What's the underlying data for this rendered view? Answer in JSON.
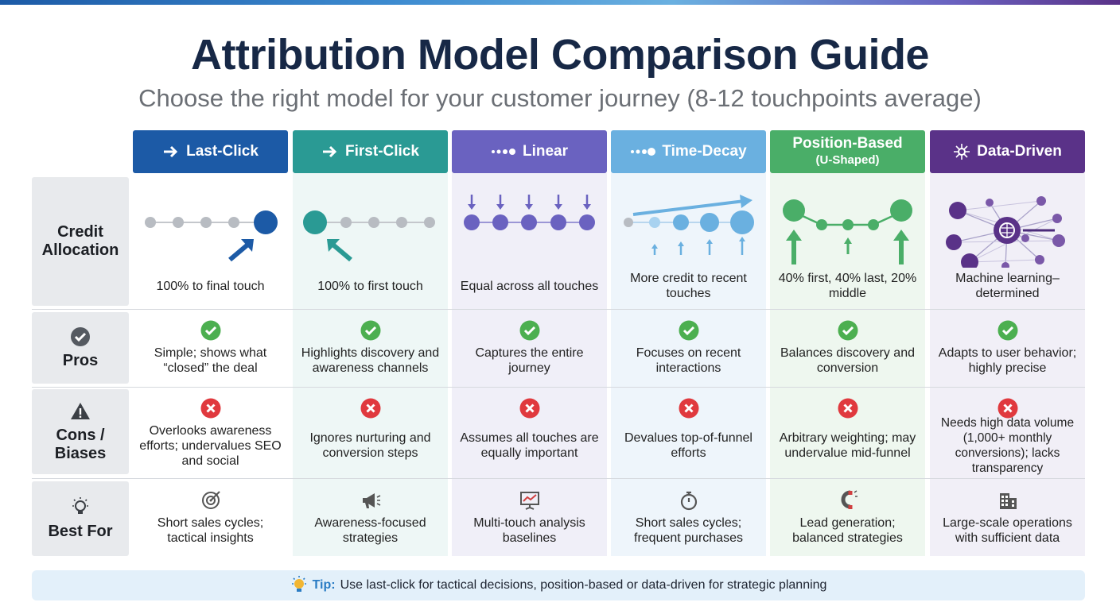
{
  "header": {
    "title": "Attribution Model Comparison Guide",
    "subtitle": "Choose the right model for your customer journey (8-12 touchpoints average)"
  },
  "columns": [
    {
      "name": "Last-Click"
    },
    {
      "name": "First-Click"
    },
    {
      "name": "Linear"
    },
    {
      "name": "Time-Decay"
    },
    {
      "name": "Position-Based",
      "subtitle": "(U-Shaped)"
    },
    {
      "name": "Data-Driven"
    }
  ],
  "rows": [
    {
      "label": "Credit Allocation",
      "cells": [
        "100% to final touch",
        "100% to first touch",
        "Equal across all touches",
        "More credit to recent touches",
        "40% first, 40% last, 20% middle",
        "Machine learning–determined"
      ]
    },
    {
      "label": "Pros",
      "cells": [
        "Simple; shows what “closed” the deal",
        "Highlights discovery and awareness channels",
        "Captures the entire journey",
        "Focuses on recent interactions",
        "Balances discovery and conversion",
        "Adapts to user behavior; highly precise"
      ]
    },
    {
      "label": "Cons / Biases",
      "cells": [
        "Overlooks awareness efforts; undervalues SEO and social",
        "Ignores nurturing and conversion steps",
        "Assumes all touches are equally important",
        "Devalues top-of-funnel efforts",
        "Arbitrary weighting; may undervalue mid-funnel",
        "Needs high data volume (1,000+ monthly conversions); lacks transparency"
      ]
    },
    {
      "label": "Best For",
      "cells": [
        "Short sales cycles; tactical insights",
        "Awareness-focused strategies",
        "Multi-touch analysis baselines",
        "Short sales cycles; frequent purchases",
        "Lead generation; balanced strategies",
        "Large-scale operations with sufficient data"
      ]
    }
  ],
  "tip": {
    "label": "Tip:",
    "text": "Use last-click for tactical decisions, position-based or data-driven for strategic planning"
  }
}
